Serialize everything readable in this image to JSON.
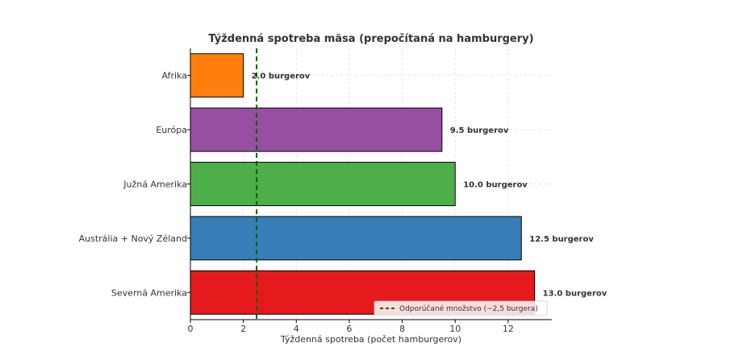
{
  "chart_data": {
    "type": "bar",
    "orientation": "horizontal",
    "title": "Týždenná spotreba mäsa (prepočítaná na hamburgery)",
    "xlabel": "Týždenná spotreba (počet hamburgerov)",
    "ylabel": "",
    "xlim": [
      0,
      13.65
    ],
    "xticks": [
      0,
      2,
      4,
      6,
      8,
      10,
      12
    ],
    "grid": true,
    "categories": [
      "Afrika",
      "Európa",
      "Južná Amerika",
      "Austrália + Nový Zéland",
      "Severná Amerika"
    ],
    "values": [
      2.0,
      9.5,
      10.0,
      12.5,
      13.0
    ],
    "colors": [
      "#ff7f0e",
      "#984ea3",
      "#4daf4a",
      "#377eb8",
      "#e41a1c"
    ],
    "data_labels": [
      "2.0 burgerov",
      "9.5 burgerov",
      "10.0 burgerov",
      "12.5 burgerov",
      "13.0 burgerov"
    ],
    "reference_line": {
      "value": 2.5,
      "color": "#006400",
      "style": "dashed",
      "label": "Odporúčané množstvo (~2,5 burgera)"
    },
    "legend_position": "bottom-right"
  }
}
